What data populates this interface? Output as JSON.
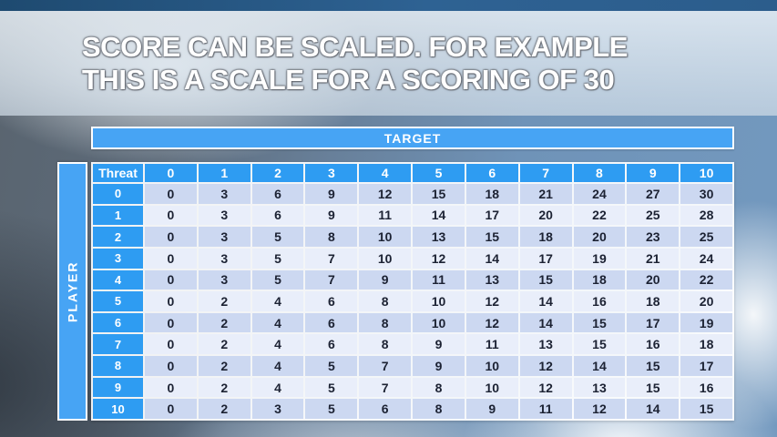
{
  "slide": {
    "title_lines": [
      "SCORE CAN BE SCALED. FOR EXAMPLE",
      "THIS IS A SCALE FOR A SCORING OF 30"
    ]
  },
  "matrix": {
    "target_label": "TARGET",
    "player_label": "PLAYER",
    "corner_label": "Threat",
    "column_headers": [
      "0",
      "1",
      "2",
      "3",
      "4",
      "5",
      "6",
      "7",
      "8",
      "9",
      "10"
    ],
    "row_headers": [
      "0",
      "1",
      "2",
      "3",
      "4",
      "5",
      "6",
      "7",
      "8",
      "9",
      "10"
    ],
    "rows": [
      [
        0,
        3,
        6,
        9,
        12,
        15,
        18,
        21,
        24,
        27,
        30
      ],
      [
        0,
        3,
        6,
        9,
        11,
        14,
        17,
        20,
        22,
        25,
        28
      ],
      [
        0,
        3,
        5,
        8,
        10,
        13,
        15,
        18,
        20,
        23,
        25
      ],
      [
        0,
        3,
        5,
        7,
        10,
        12,
        14,
        17,
        19,
        21,
        24
      ],
      [
        0,
        3,
        5,
        7,
        9,
        11,
        13,
        15,
        18,
        20,
        22
      ],
      [
        0,
        2,
        4,
        6,
        8,
        10,
        12,
        14,
        16,
        18,
        20
      ],
      [
        0,
        2,
        4,
        6,
        8,
        10,
        12,
        14,
        15,
        17,
        19
      ],
      [
        0,
        2,
        4,
        6,
        8,
        9,
        11,
        13,
        15,
        16,
        18
      ],
      [
        0,
        2,
        4,
        5,
        7,
        9,
        10,
        12,
        14,
        15,
        17
      ],
      [
        0,
        2,
        4,
        5,
        7,
        8,
        10,
        12,
        13,
        15,
        16
      ],
      [
        0,
        2,
        3,
        5,
        6,
        8,
        9,
        11,
        12,
        14,
        15
      ]
    ]
  },
  "colors": {
    "accent_blue": "#2e9cf2",
    "bar_blue": "#47a4f4",
    "row_even": "#ccd8f1",
    "row_odd": "#e9eefa",
    "cell_text": "#1c2233"
  }
}
